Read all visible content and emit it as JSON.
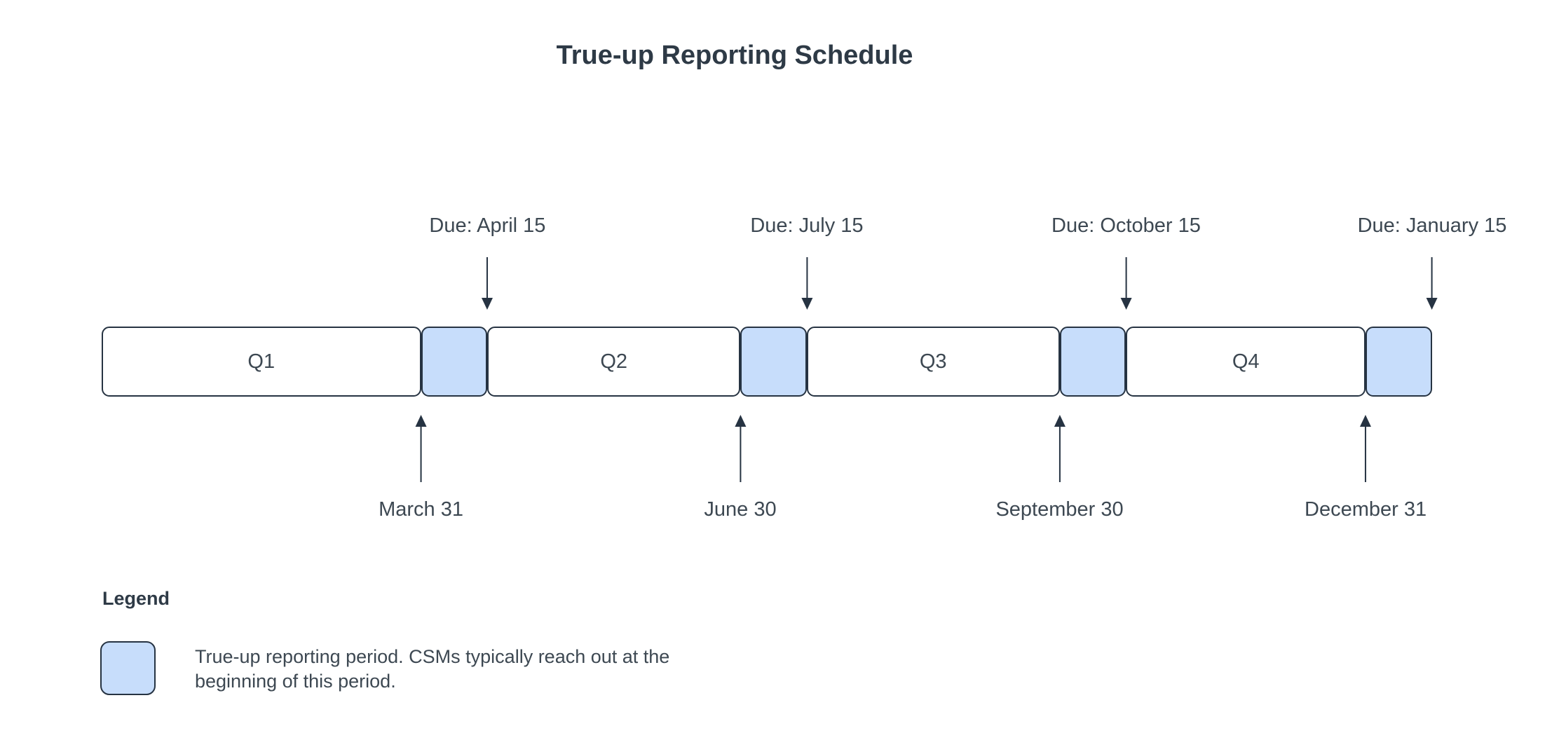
{
  "title": "True-up Reporting Schedule",
  "colors": {
    "background": "#ffffff",
    "trueup_fill": "#c7ddfb",
    "stroke": "#263342",
    "text": "#3d4852"
  },
  "timeline": {
    "segments": [
      {
        "type": "quarter",
        "label": "Q1",
        "width_pct": 24
      },
      {
        "type": "trueup",
        "label": "",
        "width_pct": 5
      },
      {
        "type": "quarter",
        "label": "Q2",
        "width_pct": 19
      },
      {
        "type": "trueup",
        "label": "",
        "width_pct": 5
      },
      {
        "type": "quarter",
        "label": "Q3",
        "width_pct": 19
      },
      {
        "type": "trueup",
        "label": "",
        "width_pct": 5
      },
      {
        "type": "quarter",
        "label": "Q4",
        "width_pct": 18
      },
      {
        "type": "trueup",
        "label": "",
        "width_pct": 5
      }
    ],
    "due_markers": [
      {
        "label": "Due: April 15",
        "position_pct": 29
      },
      {
        "label": "Due: July 15",
        "position_pct": 53
      },
      {
        "label": "Due: October 15",
        "position_pct": 77
      },
      {
        "label": "Due: January 15",
        "position_pct": 100
      }
    ],
    "quarter_end_markers": [
      {
        "label": "March 31",
        "position_pct": 24
      },
      {
        "label": "June 30",
        "position_pct": 48
      },
      {
        "label": "September 30",
        "position_pct": 72
      },
      {
        "label": "December 31",
        "position_pct": 95
      }
    ]
  },
  "legend": {
    "heading": "Legend",
    "items": [
      {
        "swatch": "trueup-period-swatch",
        "text": "True-up reporting period. CSMs typically reach out at the beginning of this period."
      }
    ]
  }
}
